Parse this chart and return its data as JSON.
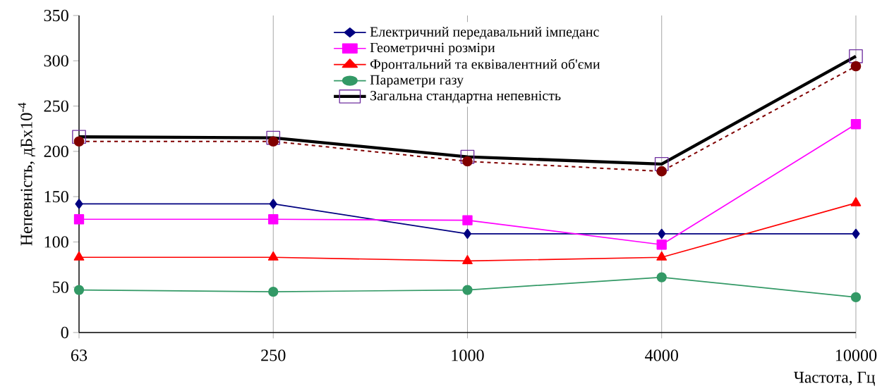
{
  "chart_data": {
    "type": "line",
    "xlabel": "Частота, Гц",
    "ylabel": "Непевність, дБх10$^{-4}$",
    "categories": [
      "63",
      "250",
      "1000",
      "4000",
      "10000"
    ],
    "ylim": [
      0,
      350
    ],
    "yticks": [
      0,
      50,
      100,
      150,
      200,
      250,
      300,
      350
    ],
    "grid": "x",
    "legend": "top",
    "series": [
      {
        "name": "Електричний передавальний імпеданс",
        "color": "#000080",
        "marker": "diamond",
        "values": [
          142,
          142,
          109,
          109,
          109
        ]
      },
      {
        "name": "Геометричні розміри",
        "color": "#ff00ff",
        "marker": "square",
        "values": [
          125,
          125,
          124,
          97,
          230
        ]
      },
      {
        "name": "Фронтальний та еквівалентний об'єми",
        "color": "#ff0000",
        "marker": "triangle",
        "values": [
          83,
          83,
          79,
          83,
          143
        ]
      },
      {
        "name": "Параметри газу",
        "color": "#339966",
        "marker": "circle",
        "values": [
          47,
          45,
          47,
          61,
          39
        ]
      },
      {
        "name": "Загальна стандартна непевність",
        "color": "#000000",
        "marker": "square",
        "values": [
          216,
          215,
          194,
          186,
          305
        ]
      },
      {
        "color": "#800000",
        "marker": "circle",
        "line_style": "dashed",
        "values": [
          211,
          211,
          189,
          178,
          294
        ]
      }
    ]
  }
}
